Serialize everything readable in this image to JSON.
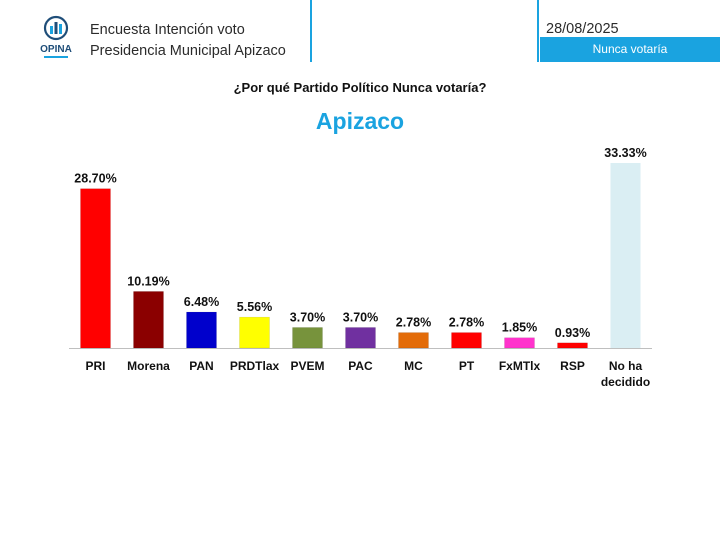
{
  "header": {
    "line1": "Encuesta Intención voto",
    "line2": "Presidencia Municipal Apizaco",
    "date": "28/08/2025",
    "tag": "Nunca votaría",
    "logo_text": "OPINA",
    "accent_color": "#1aa3e0"
  },
  "chart_data": {
    "type": "bar",
    "title": "¿Por qué Partido Político Nunca votaría?",
    "subtitle": "Apizaco",
    "categories": [
      "PRI",
      "Morena",
      "PAN",
      "PRDTlax",
      "PVEM",
      "PAC",
      "MC",
      "PT",
      "FxMTlx",
      "RSP",
      "No ha decidido"
    ],
    "values": [
      28.7,
      10.19,
      6.48,
      5.56,
      3.7,
      3.7,
      2.78,
      2.78,
      1.85,
      0.93,
      33.33
    ],
    "value_labels": [
      "28.70%",
      "10.19%",
      "6.48%",
      "5.56%",
      "3.70%",
      "3.70%",
      "2.78%",
      "2.78%",
      "1.85%",
      "0.93%",
      "33.33%"
    ],
    "colors": [
      "#ff0000",
      "#8b0000",
      "#0000cc",
      "#ffff00",
      "#77933c",
      "#7030a0",
      "#e36c09",
      "#ff0000",
      "#ff33cc",
      "#ff0000",
      "#daeef3"
    ],
    "unit": "%",
    "ylim": [
      0,
      33.33
    ],
    "grid": false,
    "legend": "none"
  }
}
